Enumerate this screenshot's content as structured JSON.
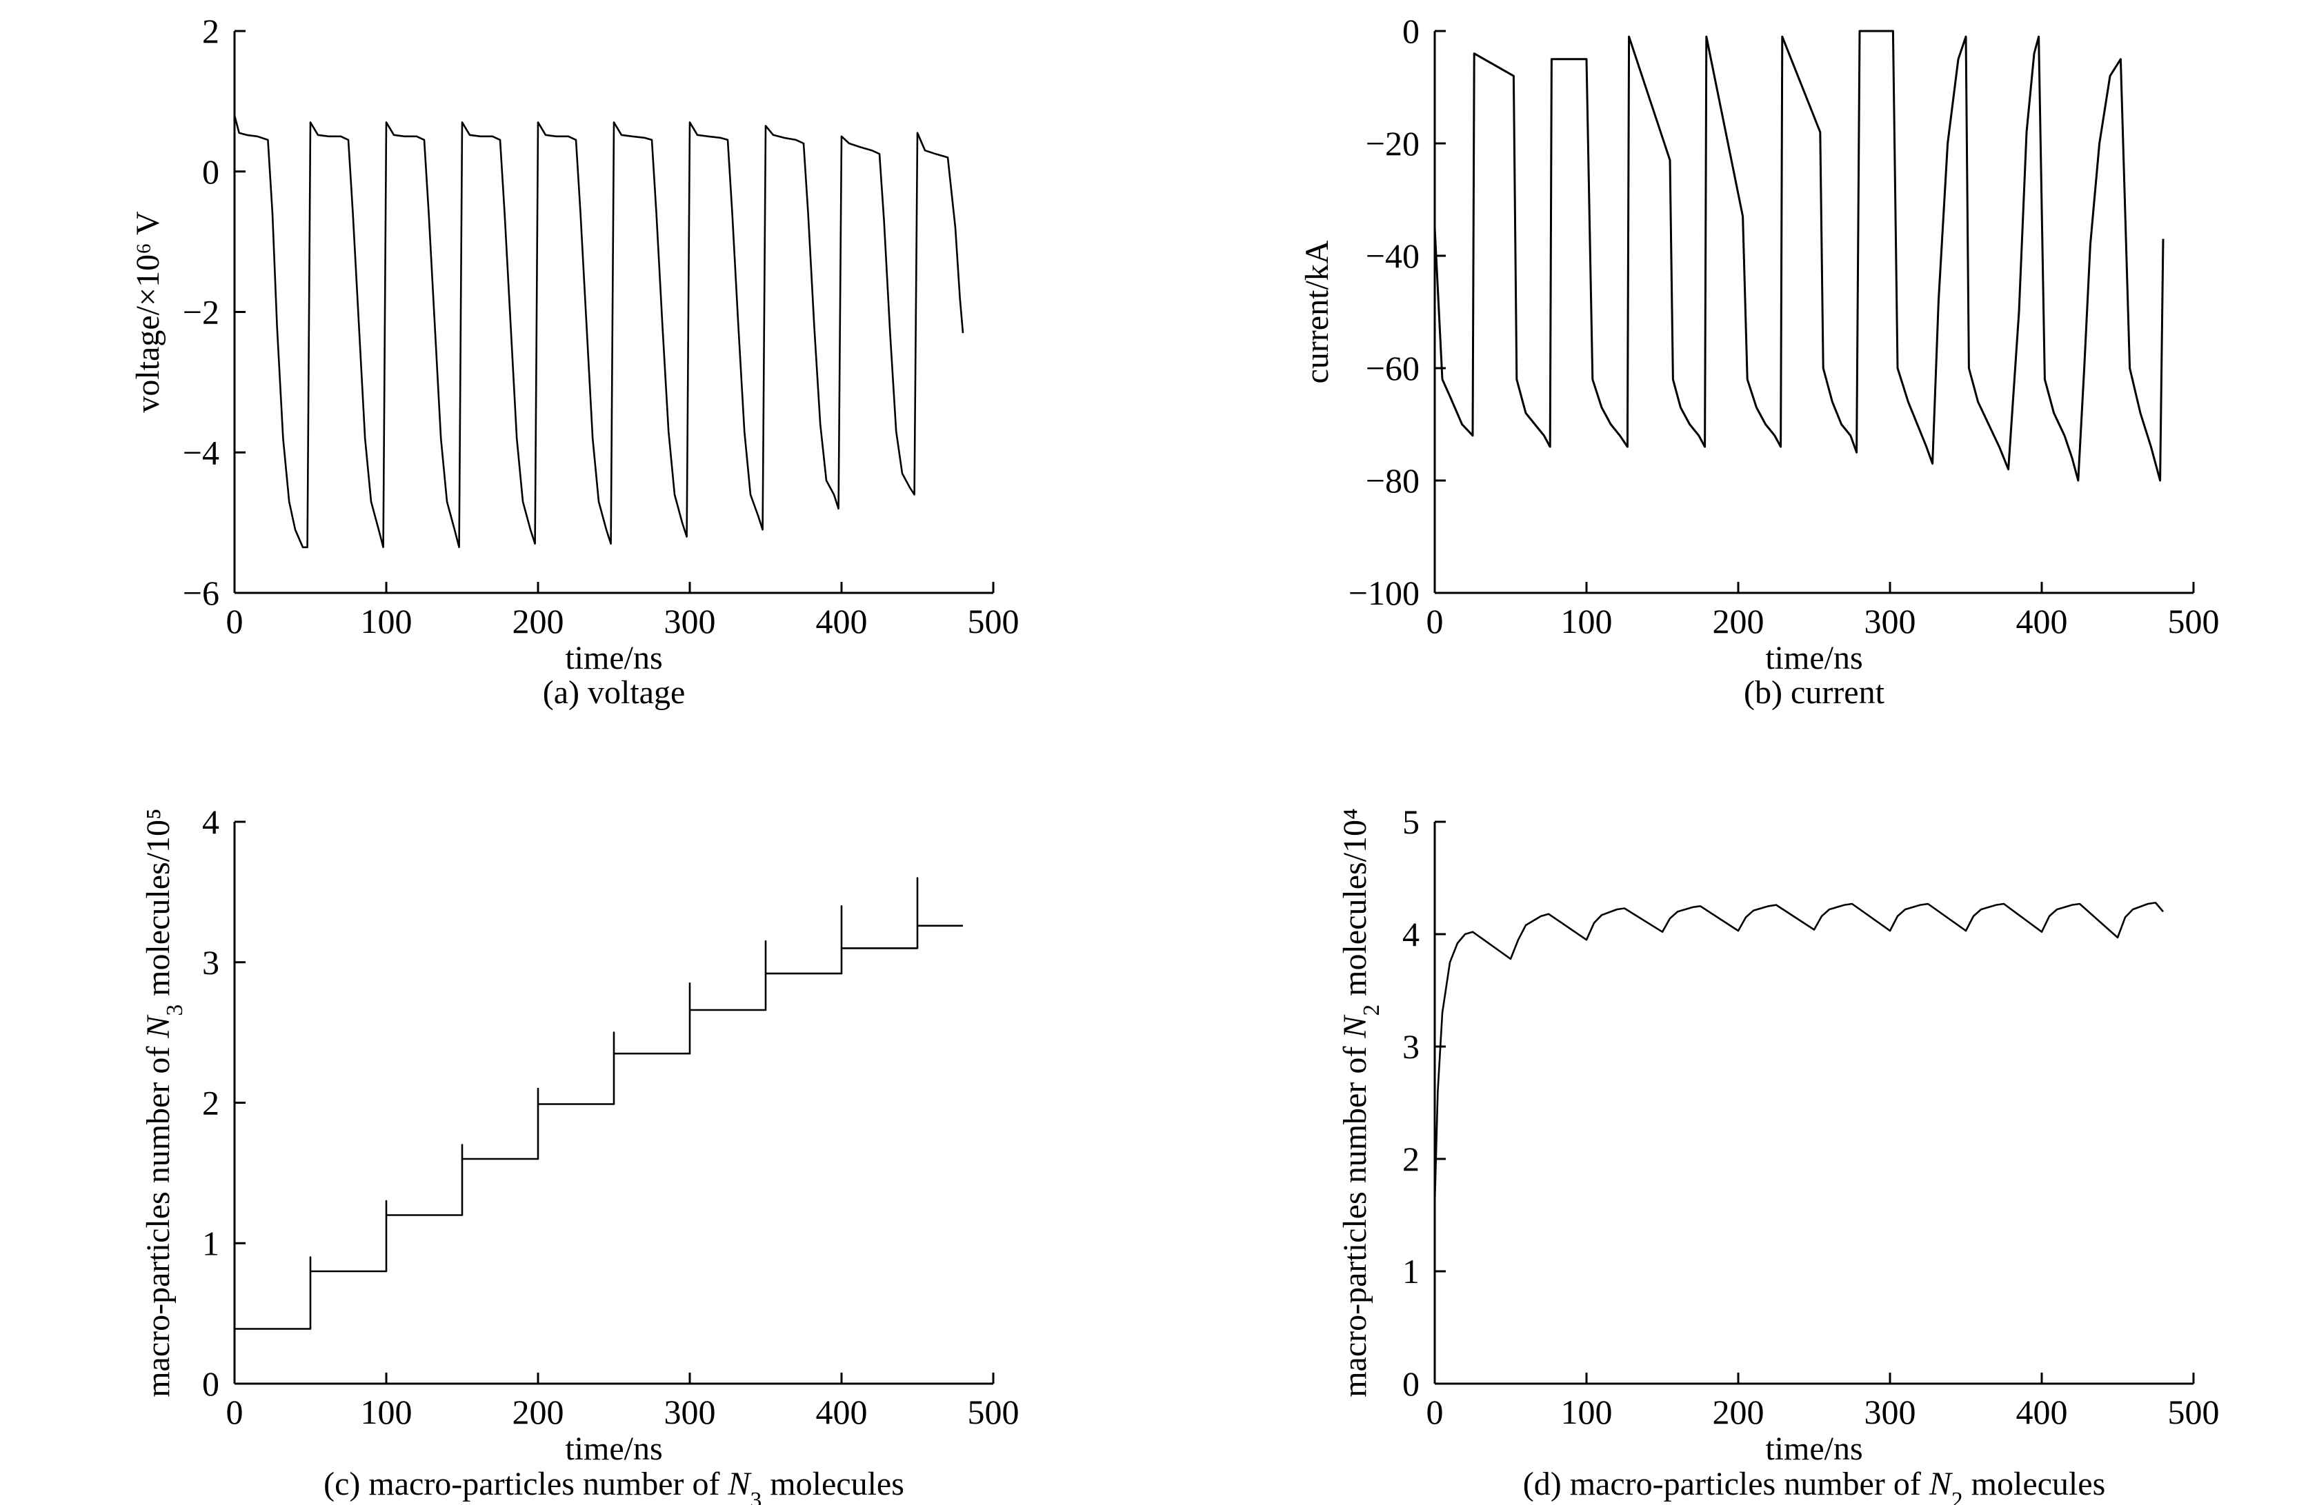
{
  "chart_data": [
    {
      "panel": "a",
      "type": "line",
      "caption": "(a) voltage",
      "xlabel": "time/ns",
      "ylabel": "voltage/×10⁶ V",
      "xlim": [
        0,
        500
      ],
      "ylim": [
        -6,
        2
      ],
      "xticks": [
        0,
        100,
        200,
        300,
        400,
        500
      ],
      "yticks": [
        -6,
        -4,
        -2,
        0,
        2
      ],
      "grid": false,
      "series": [
        {
          "x": [
            0,
            3,
            8,
            15,
            22,
            25,
            28,
            32,
            36,
            40,
            45,
            48,
            50,
            55,
            62,
            70,
            75,
            78,
            82,
            86,
            90,
            95,
            98,
            100,
            105,
            112,
            120,
            125,
            128,
            132,
            136,
            140,
            145,
            148,
            150,
            155,
            162,
            170,
            175,
            178,
            182,
            186,
            190,
            195,
            198,
            200,
            205,
            212,
            220,
            225,
            228,
            232,
            236,
            240,
            245,
            248,
            250,
            255,
            262,
            270,
            275,
            278,
            282,
            286,
            290,
            295,
            298,
            300,
            305,
            312,
            320,
            325,
            328,
            332,
            336,
            340,
            345,
            348,
            350,
            355,
            362,
            370,
            375,
            378,
            382,
            386,
            390,
            395,
            398,
            400,
            405,
            412,
            420,
            425,
            428,
            432,
            436,
            440,
            445,
            448,
            450,
            455,
            462,
            470,
            475,
            478,
            480
          ],
          "y": [
            0.8,
            0.55,
            0.52,
            0.5,
            0.45,
            -0.6,
            -2.2,
            -3.8,
            -4.7,
            -5.1,
            -5.35,
            -5.35,
            0.7,
            0.52,
            0.5,
            0.5,
            0.45,
            -0.6,
            -2.2,
            -3.8,
            -4.7,
            -5.1,
            -5.35,
            0.7,
            0.52,
            0.5,
            0.5,
            0.45,
            -0.6,
            -2.2,
            -3.8,
            -4.7,
            -5.1,
            -5.35,
            0.7,
            0.52,
            0.5,
            0.5,
            0.45,
            -0.6,
            -2.2,
            -3.8,
            -4.7,
            -5.1,
            -5.3,
            0.7,
            0.52,
            0.5,
            0.5,
            0.45,
            -0.6,
            -2.2,
            -3.8,
            -4.7,
            -5.1,
            -5.3,
            0.7,
            0.52,
            0.5,
            0.48,
            0.45,
            -0.6,
            -2.2,
            -3.7,
            -4.6,
            -5.0,
            -5.2,
            0.7,
            0.52,
            0.5,
            0.48,
            0.45,
            -0.6,
            -2.2,
            -3.7,
            -4.6,
            -4.9,
            -5.1,
            0.65,
            0.52,
            0.48,
            0.45,
            0.4,
            -0.6,
            -2.2,
            -3.6,
            -4.4,
            -4.6,
            -4.8,
            0.5,
            0.4,
            0.35,
            0.3,
            0.25,
            -0.7,
            -2.3,
            -3.7,
            -4.3,
            -4.5,
            -4.6,
            0.55,
            0.3,
            0.25,
            0.2,
            -0.8,
            -1.8,
            -2.3
          ]
        }
      ]
    },
    {
      "panel": "b",
      "type": "line",
      "caption": "(b) current",
      "xlabel": "time/ns",
      "ylabel": "current/kA",
      "xlim": [
        0,
        500
      ],
      "ylim": [
        -100,
        0
      ],
      "xticks": [
        0,
        100,
        200,
        300,
        400,
        500
      ],
      "yticks": [
        -100,
        -80,
        -60,
        -40,
        -20,
        0
      ],
      "grid": false,
      "series": [
        {
          "x": [
            0,
            5,
            10,
            18,
            25,
            26,
            52,
            54,
            60,
            66,
            72,
            76,
            77,
            100,
            104,
            110,
            116,
            122,
            127,
            128,
            155,
            157,
            162,
            168,
            174,
            178,
            179,
            203,
            206,
            212,
            218,
            224,
            228,
            229,
            254,
            256,
            262,
            268,
            274,
            278,
            280,
            302,
            305,
            312,
            318,
            324,
            328,
            332,
            338,
            345,
            350,
            352,
            358,
            365,
            372,
            378,
            385,
            390,
            395,
            398,
            402,
            408,
            415,
            420,
            424,
            428,
            432,
            438,
            445,
            452,
            458,
            465,
            472,
            478,
            480
          ],
          "y": [
            -35,
            -62,
            -65,
            -70,
            -72,
            -4,
            -8,
            -62,
            -68,
            -70,
            -72,
            -74,
            -5,
            -5,
            -62,
            -67,
            -70,
            -72,
            -74,
            -1,
            -23,
            -62,
            -67,
            -70,
            -72,
            -74,
            -1,
            -33,
            -62,
            -67,
            -70,
            -72,
            -74,
            -1,
            -18,
            -60,
            -66,
            -70,
            -72,
            -75,
            0,
            0,
            -60,
            -66,
            -70,
            -74,
            -77,
            -48,
            -20,
            -5,
            -1,
            -60,
            -66,
            -70,
            -74,
            -78,
            -50,
            -18,
            -4,
            -1,
            -62,
            -68,
            -72,
            -76,
            -80,
            -60,
            -38,
            -20,
            -8,
            -5,
            -60,
            -68,
            -74,
            -80,
            -37
          ]
        }
      ]
    },
    {
      "panel": "c",
      "type": "line",
      "caption": "(c) macro-particles number of N3 molecules",
      "xlabel": "time/ns",
      "ylabel": "macro-particles number of N3 molecules/10⁵",
      "xlim": [
        0,
        500
      ],
      "ylim": [
        0,
        4
      ],
      "xticks": [
        0,
        100,
        200,
        300,
        400,
        500
      ],
      "yticks": [
        0,
        1,
        2,
        3,
        4
      ],
      "grid": false,
      "series": [
        {
          "x": [
            0,
            50,
            50,
            50,
            100,
            100,
            100,
            150,
            150,
            150,
            200,
            200,
            200,
            250,
            250,
            250,
            300,
            300,
            300,
            350,
            350,
            350,
            400,
            400,
            400,
            450,
            450,
            450,
            480
          ],
          "y": [
            0.39,
            0.39,
            0.9,
            0.8,
            0.8,
            1.3,
            1.2,
            1.2,
            1.7,
            1.6,
            1.6,
            2.1,
            1.99,
            1.99,
            2.5,
            2.35,
            2.35,
            2.85,
            2.66,
            2.66,
            3.15,
            2.92,
            2.92,
            3.4,
            3.1,
            3.1,
            3.6,
            3.26,
            3.26
          ]
        }
      ]
    },
    {
      "panel": "d",
      "type": "line",
      "caption": "(d) macro-particles number of N2 molecules",
      "xlabel": "time/ns",
      "ylabel": "macro-particles number of N2 molecules/10⁴",
      "xlim": [
        0,
        500
      ],
      "ylim": [
        0,
        5
      ],
      "xticks": [
        0,
        100,
        200,
        300,
        400,
        500
      ],
      "yticks": [
        0,
        1,
        2,
        3,
        4,
        5
      ],
      "grid": false,
      "series": [
        {
          "x": [
            0,
            2,
            5,
            10,
            15,
            20,
            25,
            50,
            55,
            60,
            70,
            75,
            100,
            105,
            110,
            120,
            125,
            150,
            155,
            160,
            170,
            175,
            200,
            205,
            210,
            220,
            225,
            250,
            255,
            260,
            270,
            275,
            300,
            305,
            310,
            320,
            325,
            350,
            355,
            360,
            370,
            375,
            400,
            405,
            410,
            420,
            425,
            450,
            455,
            460,
            470,
            475,
            480
          ],
          "y": [
            1.6,
            2.6,
            3.3,
            3.75,
            3.92,
            4.0,
            4.02,
            3.78,
            3.95,
            4.08,
            4.16,
            4.18,
            3.95,
            4.1,
            4.17,
            4.22,
            4.23,
            4.02,
            4.14,
            4.2,
            4.24,
            4.25,
            4.03,
            4.15,
            4.21,
            4.25,
            4.26,
            4.04,
            4.16,
            4.22,
            4.26,
            4.27,
            4.03,
            4.16,
            4.22,
            4.26,
            4.27,
            4.03,
            4.16,
            4.22,
            4.26,
            4.27,
            4.02,
            4.16,
            4.22,
            4.26,
            4.27,
            3.97,
            4.15,
            4.22,
            4.27,
            4.28,
            4.2
          ]
        }
      ]
    }
  ]
}
